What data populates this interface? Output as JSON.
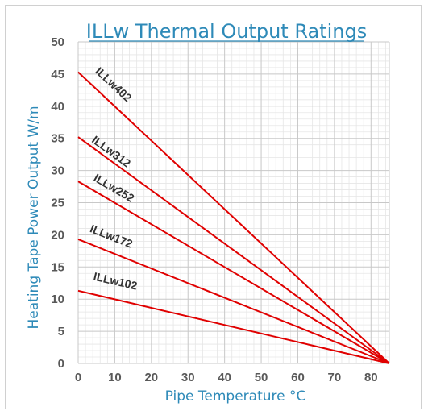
{
  "chart_data": {
    "type": "line",
    "title": "ILLw Thermal Output Ratings",
    "xlabel": "Pipe Temperature °C",
    "ylabel": "Heating Tape Power Output W/m",
    "xlim": [
      0,
      85
    ],
    "ylim": [
      0,
      50
    ],
    "x_ticks": [
      0,
      10,
      20,
      30,
      40,
      50,
      60,
      70,
      80
    ],
    "y_ticks": [
      0,
      5,
      10,
      15,
      20,
      25,
      30,
      35,
      40,
      45,
      50
    ],
    "grid": true,
    "minor_grid": true,
    "line_color": "#e00000",
    "title_color": "#2e8ab8",
    "series": [
      {
        "name": "ILLw402",
        "x": [
          0,
          85
        ],
        "y": [
          45.3,
          0
        ],
        "label_x": 4.5,
        "label_y": 45.3
      },
      {
        "name": "ILLw312",
        "x": [
          0,
          85
        ],
        "y": [
          35.2,
          0
        ],
        "label_x": 3.5,
        "label_y": 34.5
      },
      {
        "name": "ILLw252",
        "x": [
          0,
          85
        ],
        "y": [
          28.3,
          0
        ],
        "label_x": 4,
        "label_y": 28.5
      },
      {
        "name": "ILLw172",
        "x": [
          0,
          85
        ],
        "y": [
          19.3,
          0
        ],
        "label_x": 3,
        "label_y": 20.5
      },
      {
        "name": "ILLw102",
        "x": [
          0,
          85
        ],
        "y": [
          11.3,
          0
        ],
        "label_x": 4,
        "label_y": 13
      }
    ]
  }
}
